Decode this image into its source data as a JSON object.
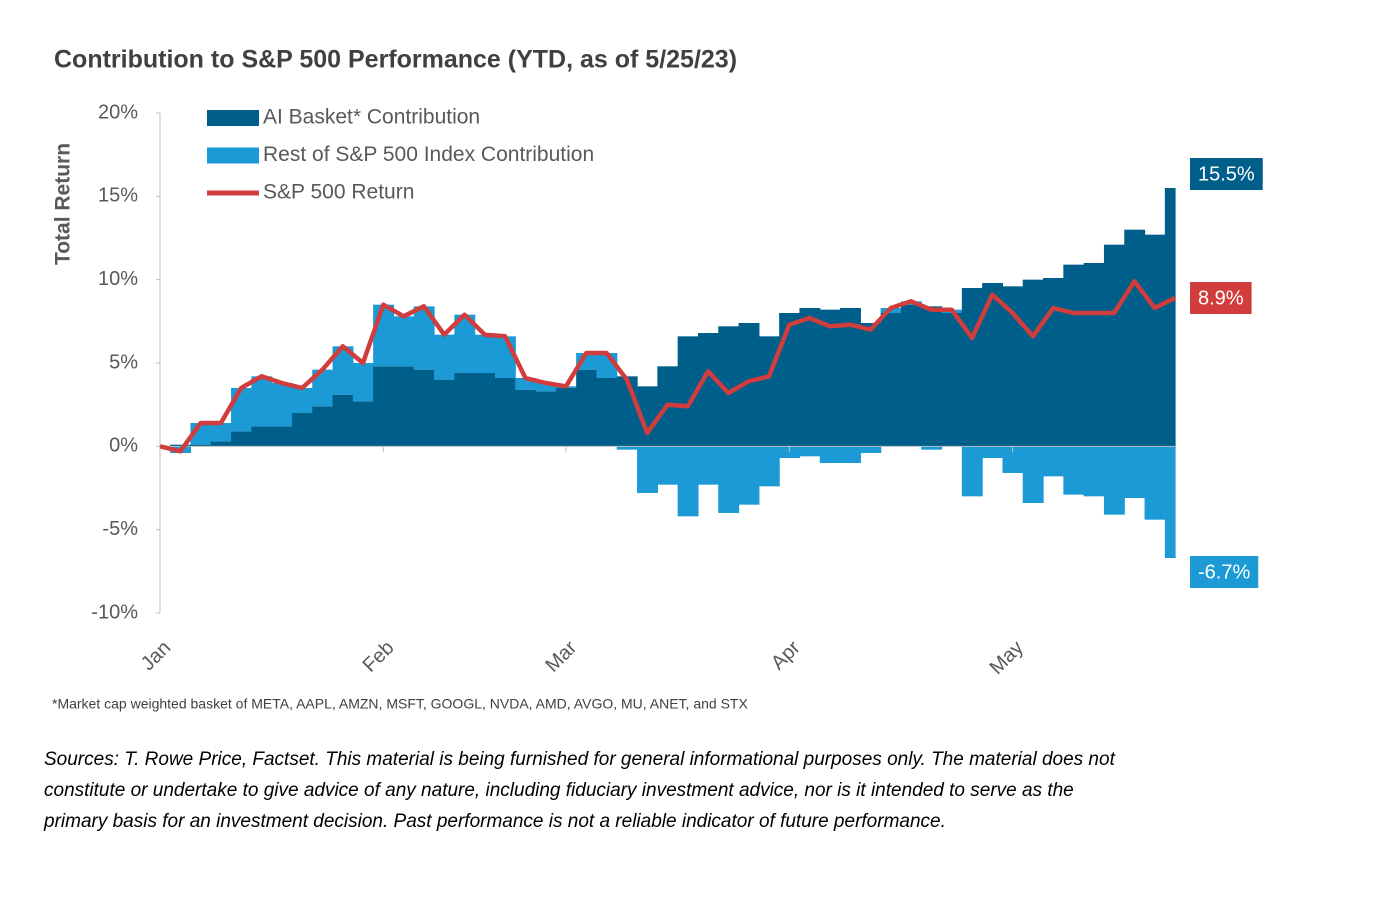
{
  "chart_data": {
    "type": "bar",
    "stacked": true,
    "title": "Contribution to S&P 500 Performance (YTD, as of 5/25/23)",
    "y_label": "Total Return",
    "legend": "top-left",
    "categories": [
      "Jan",
      null,
      null,
      null,
      null,
      null,
      null,
      null,
      null,
      null,
      null,
      "Feb",
      null,
      null,
      null,
      null,
      null,
      null,
      null,
      null,
      "Mar",
      null,
      null,
      null,
      null,
      null,
      null,
      null,
      null,
      null,
      null,
      "Apr",
      null,
      null,
      null,
      null,
      null,
      null,
      null,
      null,
      null,
      null,
      "May",
      null,
      null,
      null,
      null,
      null,
      null,
      null,
      null
    ],
    "ylim": [
      -10,
      20
    ],
    "yticks": [
      {
        "value": -10,
        "label": "-10%"
      },
      {
        "value": -5,
        "label": "-5%"
      },
      {
        "value": 0,
        "label": "0%"
      },
      {
        "value": 5,
        "label": "5%"
      },
      {
        "value": 10,
        "label": "10%"
      },
      {
        "value": 15,
        "label": "15%"
      },
      {
        "value": 20,
        "label": "20%"
      }
    ],
    "series": [
      {
        "name": "AI Basket* Contribution",
        "type": "bar",
        "color": "#005f8a",
        "values": [
          0,
          0.1,
          0.1,
          0.3,
          0.9,
          1.2,
          1.2,
          2.0,
          2.4,
          3.1,
          2.7,
          4.8,
          4.8,
          4.6,
          4.0,
          4.4,
          4.4,
          4.1,
          3.4,
          3.3,
          3.5,
          4.6,
          4.1,
          4.2,
          3.6,
          4.8,
          6.6,
          6.8,
          7.2,
          7.4,
          6.6,
          8.0,
          8.3,
          8.2,
          8.3,
          7.4,
          8.0,
          8.5,
          8.4,
          8.0,
          9.5,
          9.8,
          9.6,
          10.0,
          10.1,
          10.9,
          11.0,
          12.1,
          13.0,
          12.7,
          15.5
        ],
        "value_labels": [
          null,
          null,
          null,
          null,
          null,
          null,
          null,
          null,
          null,
          null,
          null,
          null,
          null,
          null,
          null,
          null,
          null,
          null,
          null,
          null,
          null,
          null,
          null,
          null,
          null,
          null,
          null,
          null,
          null,
          null,
          null,
          null,
          null,
          null,
          null,
          null,
          null,
          null,
          null,
          null,
          null,
          null,
          null,
          null,
          null,
          null,
          null,
          null,
          null,
          null,
          "15.5%"
        ]
      },
      {
        "name": "Rest of S&P 500 Index Contribution",
        "type": "bar",
        "color": "#1b9ad6",
        "values": [
          0,
          -0.4,
          1.3,
          1.1,
          2.6,
          3.0,
          2.6,
          1.5,
          2.2,
          2.9,
          2.3,
          3.7,
          3.0,
          3.8,
          2.7,
          3.5,
          2.3,
          2.5,
          0.7,
          0.5,
          0.1,
          1.0,
          1.5,
          -0.2,
          -2.8,
          -2.3,
          -4.2,
          -2.3,
          -4.0,
          -3.5,
          -2.4,
          -0.7,
          -0.6,
          -1.0,
          -1.0,
          -0.4,
          0.3,
          0.2,
          -0.2,
          0.2,
          -3.0,
          -0.7,
          -1.6,
          -3.4,
          -1.8,
          -2.9,
          -3.0,
          -4.1,
          -3.1,
          -4.4,
          -6.7
        ],
        "value_labels": [
          null,
          null,
          null,
          null,
          null,
          null,
          null,
          null,
          null,
          null,
          null,
          null,
          null,
          null,
          null,
          null,
          null,
          null,
          null,
          null,
          null,
          null,
          null,
          null,
          null,
          null,
          null,
          null,
          null,
          null,
          null,
          null,
          null,
          null,
          null,
          null,
          null,
          null,
          null,
          null,
          null,
          null,
          null,
          null,
          null,
          null,
          null,
          null,
          null,
          null,
          "-6.7%"
        ]
      },
      {
        "name": "S&P 500 Return",
        "type": "line",
        "color": "#d13c3c",
        "values": [
          0,
          -0.3,
          1.4,
          1.4,
          3.5,
          4.2,
          3.8,
          3.5,
          4.6,
          6.0,
          5.0,
          8.5,
          7.8,
          8.4,
          6.7,
          7.9,
          6.7,
          6.6,
          4.1,
          3.8,
          3.6,
          5.6,
          5.6,
          4.0,
          0.8,
          2.5,
          2.4,
          4.5,
          3.2,
          3.9,
          4.2,
          7.3,
          7.7,
          7.2,
          7.3,
          7.0,
          8.3,
          8.7,
          8.2,
          8.2,
          6.5,
          9.1,
          8.0,
          6.6,
          8.3,
          8.0,
          8.0,
          8.0,
          9.9,
          8.3,
          8.9
        ],
        "value_labels": [
          null,
          null,
          null,
          null,
          null,
          null,
          null,
          null,
          null,
          null,
          null,
          null,
          null,
          null,
          null,
          null,
          null,
          null,
          null,
          null,
          null,
          null,
          null,
          null,
          null,
          null,
          null,
          null,
          null,
          null,
          null,
          null,
          null,
          null,
          null,
          null,
          null,
          null,
          null,
          null,
          null,
          null,
          null,
          null,
          null,
          null,
          null,
          null,
          null,
          null,
          "8.9%"
        ]
      }
    ],
    "footnote": "*Market cap weighted basket of META, AAPL, AMZN, MSFT, GOOGL, NVDA, AMD, AVGO, MU, ANET, and STX",
    "sources": [
      "Sources: T. Rowe Price, Factset. This material is being furnished for general informational purposes only. The material does not",
      "constitute or undertake to give advice of any nature, including fiduciary investment advice, nor is it intended to serve as the",
      "primary basis for an investment decision. Past performance is not a reliable indicator of future performance."
    ]
  }
}
